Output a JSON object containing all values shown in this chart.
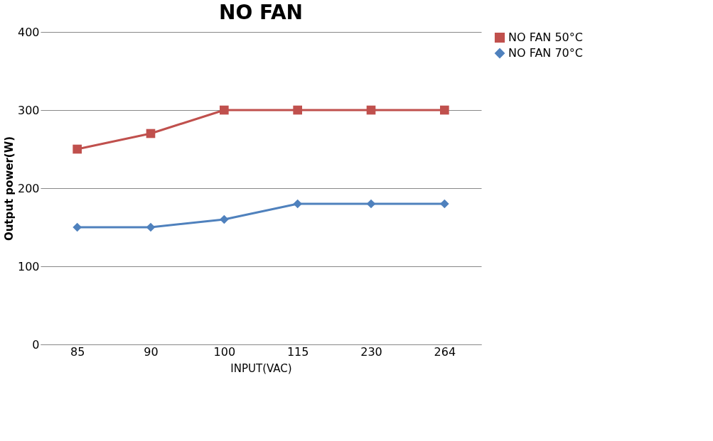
{
  "chart_data": {
    "type": "line",
    "title": "NO FAN",
    "xlabel": "INPUT(VAC)",
    "ylabel": "Output power(W)",
    "categories": [
      "85",
      "90",
      "100",
      "115",
      "230",
      "264"
    ],
    "series": [
      {
        "name": "NO FAN 50°C",
        "color": "#c0504d",
        "marker": "square",
        "values": [
          250,
          270,
          300,
          300,
          300,
          300
        ]
      },
      {
        "name": "NO FAN 70°C",
        "color": "#4f81bd",
        "marker": "diamond",
        "values": [
          150,
          150,
          160,
          180,
          180,
          180
        ]
      }
    ],
    "ylim": [
      0,
      400
    ],
    "yticks": [
      0,
      100,
      200,
      300,
      400
    ],
    "grid": "y",
    "legend": "right",
    "line_style": "solid"
  }
}
